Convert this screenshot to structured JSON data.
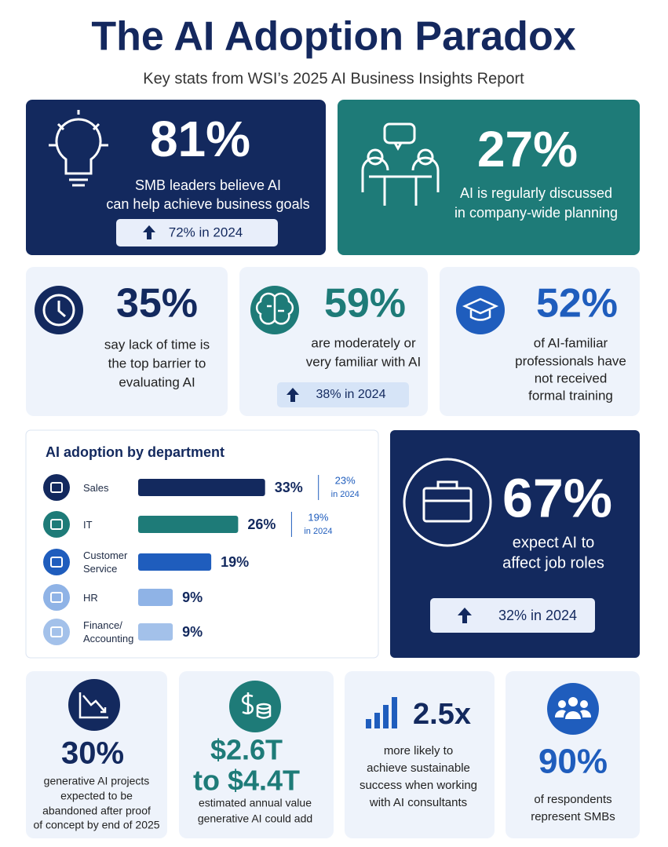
{
  "header": {
    "title": "The AI Adoption Paradox",
    "subtitle": "Key stats from WSI’s 2025 AI Business Insights Report"
  },
  "highlights": [
    {
      "stat": "81%",
      "lines": [
        "SMB leaders believe AI",
        "can help achieve business goals"
      ],
      "badge": "72% in 2024"
    },
    {
      "stat": "27%",
      "lines": [
        "AI is regularly discussed",
        "in company-wide planning"
      ]
    }
  ],
  "barriers": [
    {
      "stat": "35%",
      "lines": [
        "say lack of time is",
        "the top barrier to",
        "evaluating AI"
      ]
    },
    {
      "stat": "59%",
      "lines": [
        "are moderately or",
        "very familiar with AI"
      ],
      "badge": "38% in 2024"
    },
    {
      "stat": "52%",
      "lines": [
        "of AI-familiar",
        "professionals have",
        "not received",
        "formal training"
      ]
    }
  ],
  "departments": {
    "title": "AI adoption by department",
    "categories": [
      "Sales",
      "IT",
      "Customer\nService",
      "HR",
      "Finance/\nAccounting"
    ],
    "values": [
      33,
      26,
      19,
      9,
      9
    ],
    "value_labels": [
      "33%",
      "26%",
      "19%",
      "9%",
      "9%"
    ],
    "previous": [
      {
        "value": "23%",
        "note": "in 2024"
      },
      {
        "value": "19%",
        "note": "in 2024"
      }
    ],
    "colors": [
      "#13295e",
      "#1e7b78",
      "#1f5dbd",
      "#8fb3e6",
      "#a3c1ea"
    ]
  },
  "job_roles": {
    "stat": "67%",
    "lines": [
      "expect AI to",
      "affect job roles"
    ],
    "badge": "32% in 2024"
  },
  "facts": [
    {
      "stat_lines": [
        "30%"
      ],
      "lines": [
        "generative AI projects",
        "expected to be",
        "abandoned after proof",
        "of concept by end of 2025"
      ]
    },
    {
      "stat_lines": [
        "$2.6T",
        "to $4.4T"
      ],
      "lines": [
        "estimated annual value",
        "generative AI could add"
      ]
    },
    {
      "stat_lines": [
        "2.5x"
      ],
      "lines": [
        "more likely to",
        "achieve sustainable",
        "success when working",
        "with AI consultants"
      ]
    },
    {
      "stat_lines": [
        "90%"
      ],
      "lines": [
        "of respondents",
        "represent SMBs"
      ]
    }
  ]
}
